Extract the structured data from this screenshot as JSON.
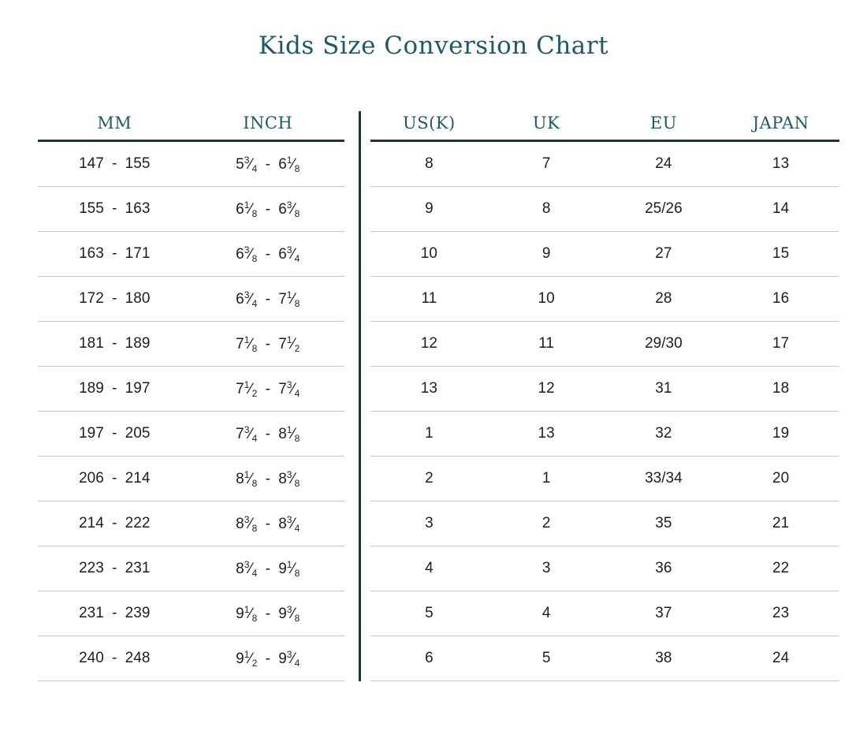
{
  "title": "Kids Size Conversion Chart",
  "colors": {
    "accent_text": "#1e5968",
    "dark_line": "#143440",
    "row_separator": "#c8c8c8",
    "data_text": "#1d1d1d"
  },
  "left_table": {
    "headers": [
      "MM",
      "INCH"
    ],
    "rows": [
      [
        "147 - 155",
        "5¾ - 6⅛"
      ],
      [
        "155 - 163",
        "6⅛ - 6⅜"
      ],
      [
        "163 - 171",
        "6⅜ - 6¾"
      ],
      [
        "172 - 180",
        "6¾ - 7⅛"
      ],
      [
        "181 - 189",
        "7⅛ - 7½"
      ],
      [
        "189 - 197",
        "7½ - 7¾"
      ],
      [
        "197 - 205",
        "7¾ - 8⅛"
      ],
      [
        "206 - 214",
        "8⅛ - 8⅜"
      ],
      [
        "214 - 222",
        "8⅜ - 8¾"
      ],
      [
        "223 - 231",
        "8¾ - 9⅛"
      ],
      [
        "231 - 239",
        "9⅛ - 9⅜"
      ],
      [
        "240 - 248",
        "9½ - 9¾"
      ]
    ]
  },
  "right_table": {
    "headers": [
      "US(K)",
      "UK",
      "EU",
      "JAPAN"
    ],
    "rows": [
      [
        "8",
        "7",
        "24",
        "13"
      ],
      [
        "9",
        "8",
        "25/26",
        "14"
      ],
      [
        "10",
        "9",
        "27",
        "15"
      ],
      [
        "11",
        "10",
        "28",
        "16"
      ],
      [
        "12",
        "11",
        "29/30",
        "17"
      ],
      [
        "13",
        "12",
        "31",
        "18"
      ],
      [
        "1",
        "13",
        "32",
        "19"
      ],
      [
        "2",
        "1",
        "33/34",
        "20"
      ],
      [
        "3",
        "2",
        "35",
        "21"
      ],
      [
        "4",
        "3",
        "36",
        "22"
      ],
      [
        "5",
        "4",
        "37",
        "23"
      ],
      [
        "6",
        "5",
        "38",
        "24"
      ]
    ]
  }
}
